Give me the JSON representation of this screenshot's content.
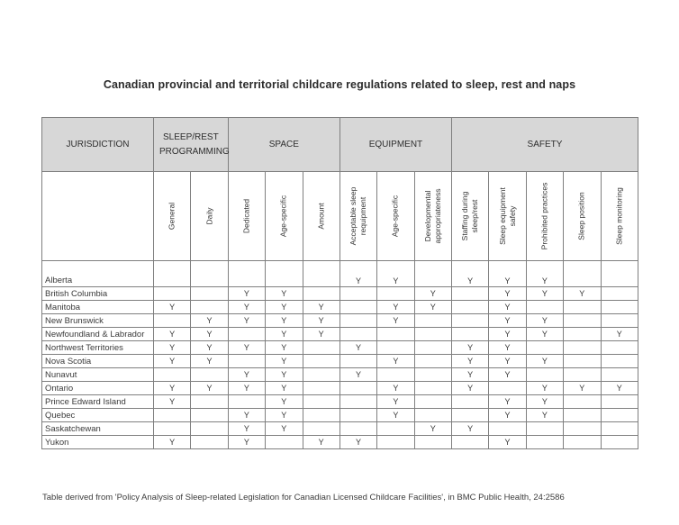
{
  "colors": {
    "header_fill": "#d7d7d7",
    "border": "#7f7f7f",
    "text": "#333333",
    "background": "#ffffff"
  },
  "chart_data": {
    "type": "table",
    "title": "Canadian provincial and territorial childcare regulations related to sleep, rest and naps",
    "jurisdiction_header": "JURISDICTION",
    "column_groups": [
      {
        "label": "SLEEP/REST PROGRAMMING",
        "span": 2
      },
      {
        "label": "SPACE",
        "span": 3
      },
      {
        "label": "EQUIPMENT",
        "span": 3
      },
      {
        "label": "SAFETY",
        "span": 5
      }
    ],
    "columns": [
      "General",
      "Daily",
      "Dedicated",
      "Age-specific",
      "Amount",
      "Acceptable sleep requipment",
      "Age-specific",
      "Developmental appropriateness",
      "Staffing during sleep/rest",
      "Sleep equipment safety",
      "Prohibited practices",
      "Sleep position",
      "Sleep monitoring"
    ],
    "yes_marker": "Y",
    "rows": [
      {
        "name": "Alberta",
        "values": [
          "",
          "",
          "",
          "",
          "",
          "Y",
          "Y",
          "",
          "Y",
          "Y",
          "Y",
          "",
          ""
        ]
      },
      {
        "name": "British Columbia",
        "values": [
          "",
          "",
          "Y",
          "Y",
          "",
          "",
          "",
          "Y",
          "",
          "Y",
          "Y",
          "Y",
          ""
        ]
      },
      {
        "name": "Manitoba",
        "values": [
          "Y",
          "",
          "Y",
          "Y",
          "Y",
          "",
          "Y",
          "Y",
          "",
          "Y",
          "",
          "",
          ""
        ]
      },
      {
        "name": "New Brunswick",
        "values": [
          "",
          "Y",
          "Y",
          "Y",
          "Y",
          "",
          "Y",
          "",
          "",
          "Y",
          "Y",
          "",
          ""
        ]
      },
      {
        "name": "Newfoundland & Labrador",
        "values": [
          "Y",
          "Y",
          "",
          "Y",
          "Y",
          "",
          "",
          "",
          "",
          "Y",
          "Y",
          "",
          "Y"
        ]
      },
      {
        "name": "Northwest Territories",
        "values": [
          "Y",
          "Y",
          "Y",
          "Y",
          "",
          "Y",
          "",
          "",
          "Y",
          "Y",
          "",
          "",
          ""
        ]
      },
      {
        "name": "Nova Scotia",
        "values": [
          "Y",
          "Y",
          "",
          "Y",
          "",
          "",
          "Y",
          "",
          "Y",
          "Y",
          "Y",
          "",
          ""
        ]
      },
      {
        "name": "Nunavut",
        "values": [
          "",
          "",
          "Y",
          "Y",
          "",
          "Y",
          "",
          "",
          "Y",
          "Y",
          "",
          "",
          ""
        ]
      },
      {
        "name": "Ontario",
        "values": [
          "Y",
          "Y",
          "Y",
          "Y",
          "",
          "",
          "Y",
          "",
          "Y",
          "",
          "Y",
          "Y",
          "Y"
        ]
      },
      {
        "name": "Prince Edward Island",
        "values": [
          "Y",
          "",
          "",
          "Y",
          "",
          "",
          "Y",
          "",
          "",
          "Y",
          "Y",
          "",
          ""
        ]
      },
      {
        "name": "Quebec",
        "values": [
          "",
          "",
          "Y",
          "Y",
          "",
          "",
          "Y",
          "",
          "",
          "Y",
          "Y",
          "",
          ""
        ]
      },
      {
        "name": "Saskatchewan",
        "values": [
          "",
          "",
          "Y",
          "Y",
          "",
          "",
          "",
          "Y",
          "Y",
          "",
          "",
          "",
          ""
        ]
      },
      {
        "name": "Yukon",
        "values": [
          "Y",
          "",
          "Y",
          "",
          "Y",
          "Y",
          "",
          "",
          "",
          "Y",
          "",
          "",
          ""
        ]
      }
    ],
    "source_note": "Table derived from 'Policy Analysis of Sleep-related Legislation for Canadian Licensed Childcare Facilities', in BMC Public Health, 24:2586"
  }
}
